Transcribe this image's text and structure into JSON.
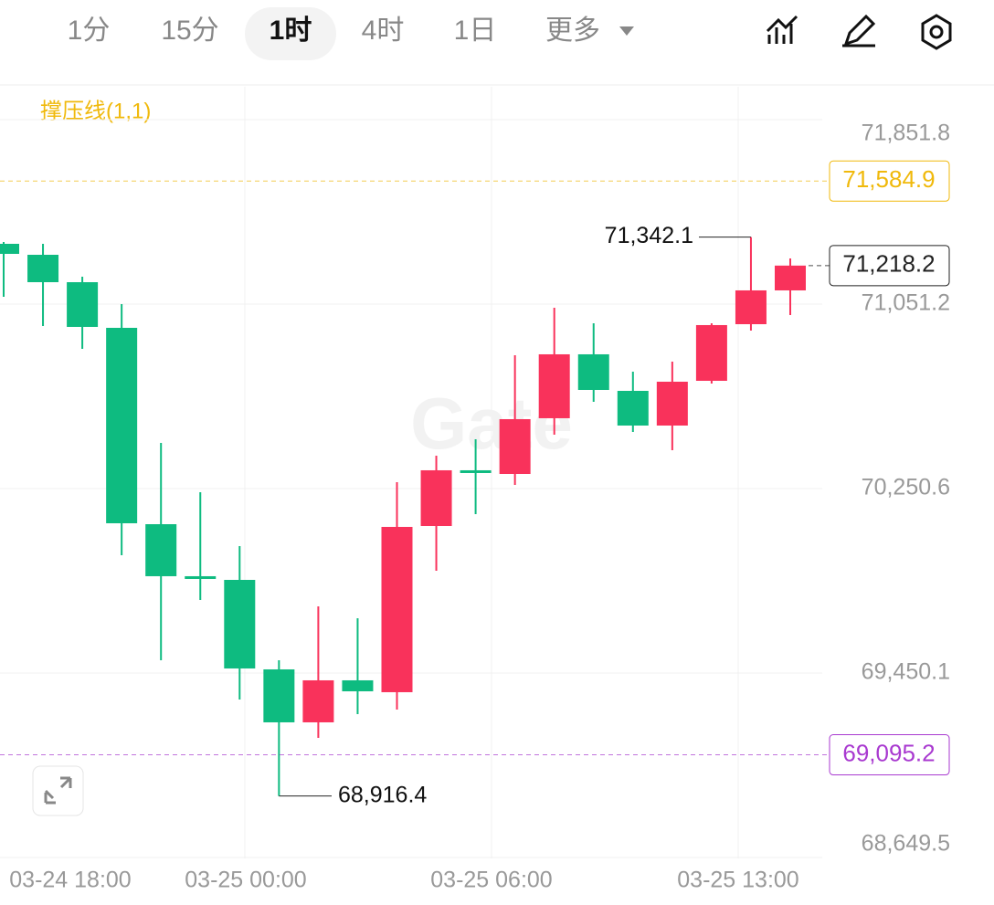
{
  "toolbar": {
    "intervals": [
      "1分",
      "15分",
      "1时",
      "4时",
      "1日"
    ],
    "selected": 2,
    "more": "更多"
  },
  "chart_data": {
    "type": "candlestick",
    "indicator": "撑压线(1,1)",
    "watermark": "Gate",
    "up_color": "#f9325b",
    "down_color": "#0ebb80",
    "open": [
      71312.7,
      71265.1,
      71146.2,
      70948.1,
      70096.0,
      69870.2,
      69854.3,
      69465.9,
      69236.1,
      69418.4,
      69366.9,
      70088.1,
      70329.9,
      70314.0,
      70555.8,
      70833.2,
      70674.6,
      70524.0,
      70718.2,
      70963.9,
      71110.6
    ],
    "high": [
      71320.6,
      71312.7,
      71170.0,
      71051.1,
      70448.8,
      70234.7,
      70000.9,
      69505.6,
      69739.4,
      69687.9,
      70278.3,
      70393.3,
      70464.6,
      70829.2,
      71035.3,
      70967.9,
      70757.9,
      70801.5,
      70967.9,
      71342.1,
      71249.3
    ],
    "low": [
      71082.8,
      70956.0,
      70856.9,
      69961.3,
      69505.6,
      69767.1,
      69335.1,
      68916.4,
      69168.7,
      69271.7,
      69291.6,
      69893.9,
      70139.6,
      70266.5,
      70484.4,
      70627.1,
      70496.3,
      70417.0,
      70706.3,
      70936.2,
      71003.6
    ],
    "close": [
      71269.1,
      71146.2,
      70952.1,
      70100.0,
      69870.2,
      69858.3,
      69469.9,
      69236.1,
      69418.4,
      69370.8,
      70084.2,
      70329.9,
      70318.0,
      70551.8,
      70833.2,
      70678.6,
      70524.0,
      70714.3,
      70960.0,
      71110.6,
      71218.2
    ],
    "x_labels": [
      "03-24 18:00",
      "03-25 00:00",
      "03-25 06:00",
      "03-25 13:00"
    ],
    "ylim": [
      68649.5,
      71994.3
    ],
    "yticks": [
      {
        "value": 68649.5,
        "label": "68,649.5"
      },
      {
        "value": 69450.1,
        "label": "69,450.1"
      },
      {
        "value": 70250.6,
        "label": "70,250.6"
      },
      {
        "value": 71051.2,
        "label": "71,051.2"
      },
      {
        "value": 71851.8,
        "label": "71,851.8"
      }
    ],
    "price_lines": [
      {
        "value": 71584.9,
        "label": "71,584.9",
        "color": "#f0b90b"
      },
      {
        "value": 71218.2,
        "label": "71,218.2",
        "color": "#222222"
      },
      {
        "value": 69095.2,
        "label": "69,095.2",
        "color": "#a93ad0"
      }
    ],
    "high_label": {
      "value": 71342.1,
      "label": "71,342.1"
    },
    "low_label": {
      "value": 68916.4,
      "label": "68,916.4"
    }
  }
}
